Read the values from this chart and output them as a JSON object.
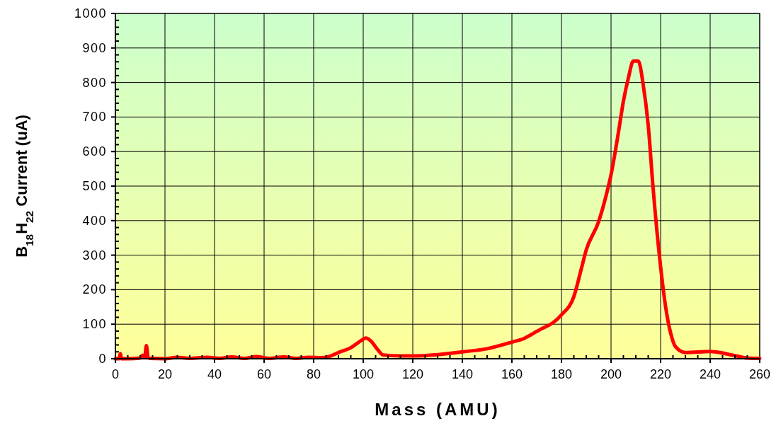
{
  "chart_data": {
    "type": "line",
    "xlabel": "Mass (AMU)",
    "ylabel": "B$_{18}$H$_{22}$ Current (uA)",
    "xlim": [
      0,
      260
    ],
    "ylim": [
      0,
      1000
    ],
    "xticks": [
      0,
      {
        "value": 5,
        "label": null
      },
      {
        "value": 10,
        "label": null
      },
      {
        "value": 15,
        "label": null
      },
      20,
      {
        "value": 25,
        "label": null
      },
      {
        "value": 30,
        "label": null
      },
      {
        "value": 35,
        "label": null
      },
      40,
      {
        "value": 45,
        "label": null
      },
      {
        "value": 50,
        "label": null
      },
      {
        "value": 55,
        "label": null
      },
      60,
      {
        "value": 65,
        "label": null
      },
      {
        "value": 70,
        "label": null
      },
      {
        "value": 75,
        "label": null
      },
      80,
      {
        "value": 85,
        "label": null
      },
      {
        "value": 90,
        "label": null
      },
      {
        "value": 95,
        "label": null
      },
      100,
      {
        "value": 105,
        "label": null
      },
      {
        "value": 110,
        "label": null
      },
      {
        "value": 115,
        "label": null
      },
      120,
      {
        "value": 125,
        "label": null
      },
      {
        "value": 130,
        "label": null
      },
      {
        "value": 135,
        "label": null
      },
      140,
      {
        "value": 145,
        "label": null
      },
      {
        "value": 150,
        "label": null
      },
      {
        "value": 155,
        "label": null
      },
      160,
      {
        "value": 165,
        "label": null
      },
      {
        "value": 170,
        "label": null
      },
      {
        "value": 175,
        "label": null
      },
      180,
      {
        "value": 185,
        "label": null
      },
      {
        "value": 190,
        "label": null
      },
      {
        "value": 195,
        "label": null
      },
      200,
      {
        "value": 205,
        "label": null
      },
      {
        "value": 210,
        "label": null
      },
      {
        "value": 215,
        "label": null
      },
      220,
      {
        "value": 225,
        "label": null
      },
      {
        "value": 230,
        "label": null
      },
      {
        "value": 235,
        "label": null
      },
      240,
      {
        "value": 245,
        "label": null
      },
      {
        "value": 250,
        "label": null
      },
      {
        "value": 255,
        "label": null
      },
      260
    ],
    "yticks": [
      0,
      {
        "value": 20,
        "label": null
      },
      {
        "value": 40,
        "label": null
      },
      {
        "value": 60,
        "label": null
      },
      {
        "value": 80,
        "label": null
      },
      100,
      {
        "value": 120,
        "label": null
      },
      {
        "value": 140,
        "label": null
      },
      {
        "value": 160,
        "label": null
      },
      {
        "value": 180,
        "label": null
      },
      200,
      {
        "value": 220,
        "label": null
      },
      {
        "value": 240,
        "label": null
      },
      {
        "value": 260,
        "label": null
      },
      {
        "value": 280,
        "label": null
      },
      300,
      {
        "value": 320,
        "label": null
      },
      {
        "value": 340,
        "label": null
      },
      {
        "value": 360,
        "label": null
      },
      {
        "value": 380,
        "label": null
      },
      400,
      {
        "value": 420,
        "label": null
      },
      {
        "value": 440,
        "label": null
      },
      {
        "value": 460,
        "label": null
      },
      {
        "value": 480,
        "label": null
      },
      500,
      {
        "value": 520,
        "label": null
      },
      {
        "value": 540,
        "label": null
      },
      {
        "value": 560,
        "label": null
      },
      {
        "value": 580,
        "label": null
      },
      600,
      {
        "value": 620,
        "label": null
      },
      {
        "value": 640,
        "label": null
      },
      {
        "value": 660,
        "label": null
      },
      {
        "value": 680,
        "label": null
      },
      700,
      {
        "value": 720,
        "label": null
      },
      {
        "value": 740,
        "label": null
      },
      {
        "value": 760,
        "label": null
      },
      {
        "value": 780,
        "label": null
      },
      800,
      {
        "value": 820,
        "label": null
      },
      {
        "value": 840,
        "label": null
      },
      {
        "value": 860,
        "label": null
      },
      {
        "value": 880,
        "label": null
      },
      900,
      {
        "value": 920,
        "label": null
      },
      {
        "value": 940,
        "label": null
      },
      {
        "value": 960,
        "label": null
      },
      {
        "value": 980,
        "label": null
      },
      1000
    ],
    "grid": true,
    "marker": "none",
    "line_style": "solid",
    "series": [
      {
        "color": "#ff0000",
        "x": [
          0,
          1.5,
          2,
          2.5,
          5,
          10,
          11,
          11.8,
          12.5,
          13.2,
          14,
          20,
          25,
          30,
          37,
          42,
          47,
          52,
          57,
          62,
          68,
          73,
          78,
          83,
          86,
          90,
          95,
          99,
          101,
          103,
          106,
          108,
          115,
          120,
          130,
          140,
          150,
          160,
          165,
          170,
          180,
          185,
          188,
          190,
          195,
          198,
          200,
          203,
          205,
          207,
          209,
          211,
          213,
          215,
          217,
          220,
          222,
          224,
          226,
          230,
          240,
          250,
          255,
          260
        ],
        "values": [
          0,
          0,
          15,
          0,
          0,
          2,
          10,
          3,
          38,
          3,
          1,
          0,
          4,
          1,
          4,
          1,
          5,
          1,
          6,
          1,
          5,
          1,
          4,
          3,
          6,
          18,
          32,
          52,
          60,
          52,
          25,
          11,
          8,
          8,
          12,
          20,
          29,
          48,
          59,
          79,
          127,
          180,
          260,
          315,
          397,
          472,
          533,
          656,
          746,
          813,
          862,
          862,
          793,
          677,
          492,
          267,
          152,
          76,
          35,
          18,
          21,
          9,
          2,
          1
        ]
      }
    ]
  }
}
